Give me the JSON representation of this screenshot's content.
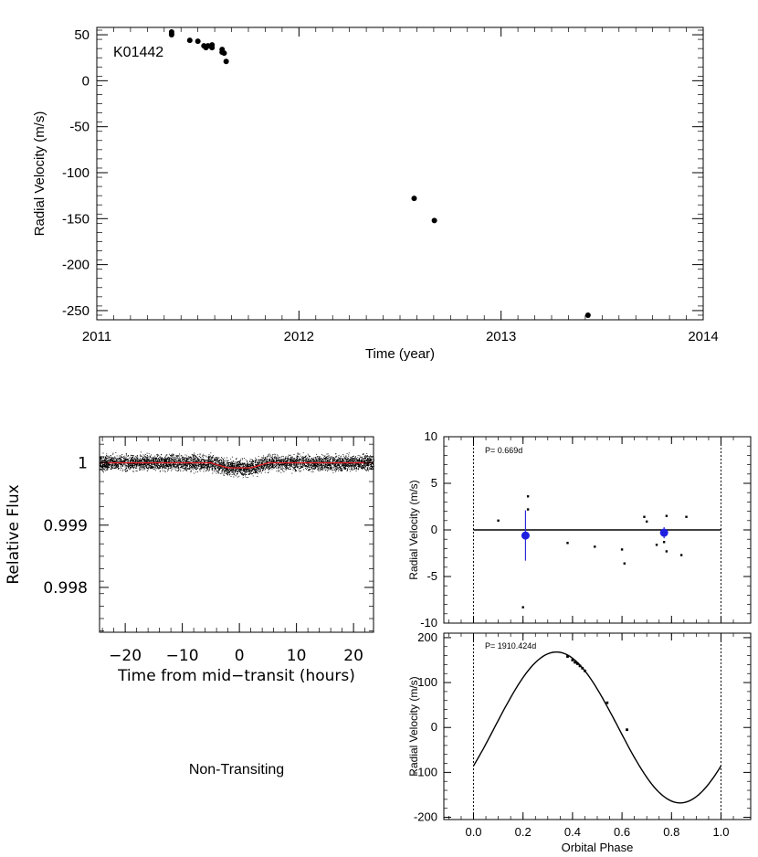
{
  "chart_data": [
    {
      "type": "scatter",
      "id": "rv-time",
      "title": "",
      "annotation": "K01442",
      "xlabel": "Time (year)",
      "ylabel": "Radial Velocity (m/s)",
      "xlim": [
        2011,
        2014
      ],
      "ylim": [
        -260,
        58
      ],
      "xticks": [
        2011,
        2012,
        2013,
        2014
      ],
      "xtick_labels": [
        "2011",
        "2012",
        "2013",
        "2014"
      ],
      "yticks": [
        50,
        0,
        -50,
        -100,
        -150,
        -200,
        -250
      ],
      "ytick_labels": [
        "50",
        "0",
        "-50",
        "-100",
        "-150",
        "-200",
        "-250"
      ],
      "points": [
        {
          "x": 2011.37,
          "y": 53
        },
        {
          "x": 2011.37,
          "y": 51
        },
        {
          "x": 2011.37,
          "y": 50
        },
        {
          "x": 2011.46,
          "y": 44
        },
        {
          "x": 2011.5,
          "y": 43
        },
        {
          "x": 2011.53,
          "y": 38
        },
        {
          "x": 2011.54,
          "y": 36
        },
        {
          "x": 2011.55,
          "y": 38
        },
        {
          "x": 2011.57,
          "y": 36
        },
        {
          "x": 2011.57,
          "y": 39
        },
        {
          "x": 2011.62,
          "y": 34
        },
        {
          "x": 2011.62,
          "y": 31
        },
        {
          "x": 2011.63,
          "y": 30
        },
        {
          "x": 2011.64,
          "y": 21
        },
        {
          "x": 2012.57,
          "y": -128
        },
        {
          "x": 2012.67,
          "y": -152
        },
        {
          "x": 2013.43,
          "y": -255
        }
      ]
    },
    {
      "type": "scatter",
      "id": "transit",
      "xlabel": "Time from mid−transit (hours)",
      "ylabel": "Relative Flux",
      "xlim": [
        -24.5,
        23.5
      ],
      "ylim": [
        0.99728,
        1.00042
      ],
      "xticks": [
        -20,
        -10,
        0,
        10,
        20
      ],
      "xtick_labels": [
        "−20",
        "−10",
        "0",
        "10",
        "20"
      ],
      "yticks": [
        1.0,
        0.999,
        0.998
      ],
      "ytick_labels": [
        "1",
        "0.999",
        "0.998"
      ],
      "noise_amplitude": 0.00012,
      "model": {
        "baseline": 1.0,
        "depth": 8e-05,
        "t_ingress": -5,
        "t_flat_start": -2,
        "t_flat_end": 2,
        "t_egress": 5
      }
    },
    {
      "type": "line",
      "id": "rv-phase-short",
      "annotation": "P= 0.669d",
      "xlabel": "",
      "ylabel": "Radial Velocity (m/s)",
      "xlim": [
        -0.12,
        1.12
      ],
      "ylim": [
        -10,
        10
      ],
      "yticks": [
        10,
        5,
        0,
        -5,
        -10
      ],
      "ytick_labels": [
        "10",
        "5",
        "0",
        "-5",
        "-10"
      ],
      "dashed_x": [
        0.0,
        1.0
      ],
      "model": [
        {
          "x": 0.0,
          "y": 0.0
        },
        {
          "x": 1.0,
          "y": 0.0
        }
      ],
      "small_points": [
        {
          "x": 0.1,
          "y": 1.0
        },
        {
          "x": 0.22,
          "y": 3.6
        },
        {
          "x": 0.22,
          "y": 2.2
        },
        {
          "x": 0.2,
          "y": -8.3
        },
        {
          "x": 0.38,
          "y": -1.4
        },
        {
          "x": 0.49,
          "y": -1.8
        },
        {
          "x": 0.6,
          "y": -2.1
        },
        {
          "x": 0.61,
          "y": -3.6
        },
        {
          "x": 0.69,
          "y": 1.4
        },
        {
          "x": 0.7,
          "y": 0.9
        },
        {
          "x": 0.74,
          "y": -1.6
        },
        {
          "x": 0.77,
          "y": -1.3
        },
        {
          "x": 0.78,
          "y": 1.5
        },
        {
          "x": 0.78,
          "y": -2.3
        },
        {
          "x": 0.84,
          "y": -2.7
        },
        {
          "x": 0.86,
          "y": 1.4
        }
      ],
      "binned_points": [
        {
          "x": 0.21,
          "y": -0.6,
          "err": 2.7
        },
        {
          "x": 0.77,
          "y": -0.3,
          "err": 0.6
        }
      ]
    },
    {
      "type": "line",
      "id": "rv-phase-long",
      "annotation": "P= 1910.424d",
      "xlabel": "Orbital Phase",
      "ylabel": "Radial Velocity (m/s)",
      "xlim": [
        -0.12,
        1.12
      ],
      "ylim": [
        -205,
        210
      ],
      "xticks": [
        0.0,
        0.2,
        0.4,
        0.6,
        0.8,
        1.0
      ],
      "xtick_labels": [
        "0.0",
        "0.2",
        "0.4",
        "0.6",
        "0.8",
        "1.0"
      ],
      "yticks": [
        200,
        100,
        0,
        -100,
        -200
      ],
      "ytick_labels": [
        "200",
        "100",
        "0",
        "-100",
        "-200"
      ],
      "dashed_x": [
        0.0,
        1.0
      ],
      "model_fn": {
        "offset": 0,
        "amplitude": 168,
        "phase_of_max": 0.335
      },
      "points": [
        {
          "x": 0.38,
          "y": 158
        },
        {
          "x": 0.4,
          "y": 150
        },
        {
          "x": 0.41,
          "y": 145
        },
        {
          "x": 0.42,
          "y": 142
        },
        {
          "x": 0.43,
          "y": 137
        },
        {
          "x": 0.44,
          "y": 132
        },
        {
          "x": 0.45,
          "y": 126
        },
        {
          "x": 0.54,
          "y": 55
        },
        {
          "x": 0.62,
          "y": -5
        }
      ]
    }
  ],
  "caption": "Non-Transiting"
}
